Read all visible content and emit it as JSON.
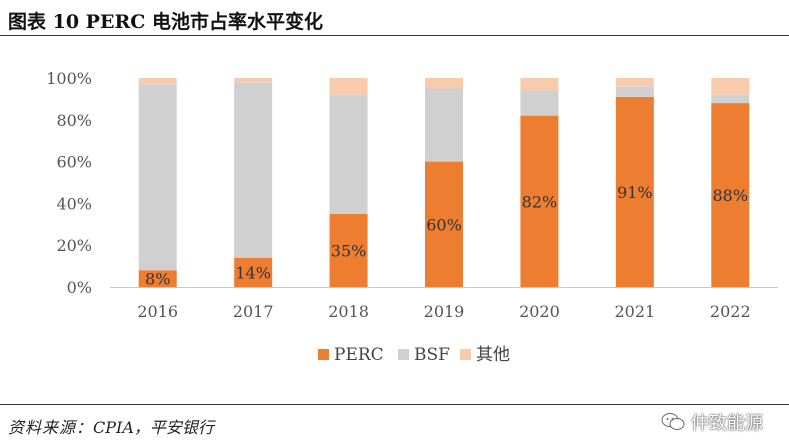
{
  "figure": {
    "title": "图表 10    PERC 电池市占率水平变化",
    "source_label": "资料来源：",
    "source_text": "CPIA，平安银行",
    "watermark_text": "仲致能源"
  },
  "chart_data": {
    "type": "bar",
    "stacked": true,
    "categories": [
      "2016",
      "2017",
      "2018",
      "2019",
      "2020",
      "2021",
      "2022"
    ],
    "series": [
      {
        "name": "PERC",
        "color": "#ED7D31",
        "values": [
          8,
          14,
          35,
          60,
          82,
          91,
          88
        ],
        "labels": [
          "8%",
          "14%",
          "35%",
          "60%",
          "82%",
          "91%",
          "88%"
        ]
      },
      {
        "name": "BSF",
        "color": "#D0D0D0",
        "values": [
          89,
          84,
          57,
          35,
          12,
          5,
          4
        ]
      },
      {
        "name": "其他",
        "color": "#F8CBAD",
        "values": [
          3,
          2,
          8,
          5,
          6,
          4,
          8
        ]
      }
    ],
    "ylim": [
      0,
      100
    ],
    "yticks": [
      "0%",
      "20%",
      "40%",
      "60%",
      "80%",
      "100%"
    ],
    "legend_position": "bottom",
    "grid": false
  }
}
